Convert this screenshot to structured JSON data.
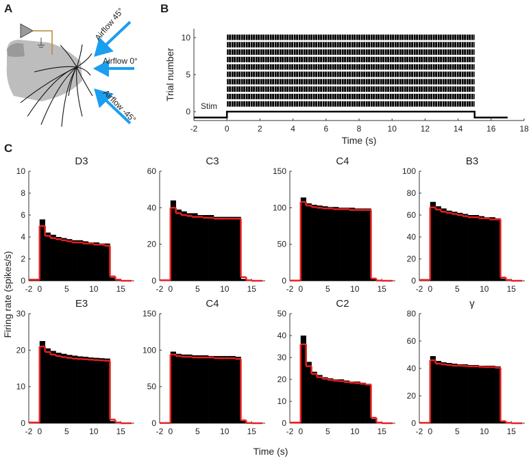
{
  "panel_labels": {
    "a": "A",
    "b": "B",
    "c": "C"
  },
  "diagram": {
    "arrows": [
      "Airflow 45°",
      "Airflow 0°",
      "Airflow -45°"
    ]
  },
  "shared": {
    "y_label": "Firing rate (spikes/s)",
    "x_label": "Time (s)"
  },
  "chart_data": [
    {
      "type": "raster",
      "x_label": "Time (s)",
      "y_label": "Trial number",
      "xlim": [
        -2,
        18
      ],
      "xticks": [
        -2,
        0,
        2,
        4,
        6,
        8,
        10,
        12,
        14,
        16,
        18
      ],
      "ylim": [
        -1.2,
        11.2
      ],
      "yticks": [
        0,
        5,
        10
      ],
      "trials": [
        1,
        2,
        3,
        4,
        5,
        6,
        7,
        8,
        9,
        10
      ],
      "spike_start": 0,
      "spike_end": 15,
      "stim": {
        "label": "Stim",
        "start": -2,
        "onset": 0,
        "offset": 15,
        "end": 17,
        "low": -0.8,
        "high": 0
      }
    },
    {
      "type": "histogram",
      "title": "D3",
      "xlim": [
        -2,
        17.5
      ],
      "xticks": [
        -2,
        0,
        5,
        10,
        15
      ],
      "ylim": [
        0,
        10
      ],
      "yticks": [
        0,
        2,
        4,
        6,
        8,
        10
      ],
      "bins": [
        -2,
        -1,
        0,
        1,
        2,
        3,
        4,
        5,
        6,
        7,
        8,
        9,
        10,
        11,
        12,
        13,
        14,
        15,
        16,
        17
      ],
      "counts": [
        0.1,
        0.1,
        5.6,
        4.4,
        4.2,
        4.0,
        3.9,
        3.8,
        3.7,
        3.7,
        3.6,
        3.5,
        3.5,
        3.4,
        3.4,
        0.3,
        0.1,
        0,
        0
      ],
      "smoothed": [
        0.1,
        0.1,
        5.0,
        4.1,
        3.9,
        3.8,
        3.7,
        3.6,
        3.5,
        3.5,
        3.4,
        3.4,
        3.3,
        3.3,
        3.2,
        0.4,
        0.1,
        0,
        0
      ],
      "color": "#000000",
      "line_color": "#e8201e"
    },
    {
      "type": "histogram",
      "title": "C3",
      "xlim": [
        -2,
        17.5
      ],
      "xticks": [
        -2,
        0,
        5,
        10,
        15
      ],
      "ylim": [
        0,
        60
      ],
      "yticks": [
        0,
        20,
        40,
        60
      ],
      "bins": [
        -2,
        -1,
        0,
        1,
        2,
        3,
        4,
        5,
        6,
        7,
        8,
        9,
        10,
        11,
        12,
        13,
        14,
        15,
        16,
        17
      ],
      "counts": [
        0.5,
        0.5,
        44,
        39,
        38,
        37,
        37,
        36,
        36,
        36,
        35,
        35,
        35,
        35,
        35,
        1,
        0.5,
        0,
        0
      ],
      "smoothed": [
        0.3,
        0.3,
        40,
        37,
        36,
        35.5,
        35,
        35,
        34.5,
        34.5,
        34,
        34,
        34,
        34,
        34,
        2,
        0.3,
        0,
        0
      ],
      "color": "#000000",
      "line_color": "#e8201e"
    },
    {
      "type": "histogram",
      "title": "C4",
      "xlim": [
        -2,
        17.5
      ],
      "xticks": [
        -2,
        0,
        5,
        10,
        15
      ],
      "ylim": [
        0,
        150
      ],
      "yticks": [
        0,
        50,
        100,
        150
      ],
      "bins": [
        -2,
        -1,
        0,
        1,
        2,
        3,
        4,
        5,
        6,
        7,
        8,
        9,
        10,
        11,
        12,
        13,
        14,
        15,
        16,
        17
      ],
      "counts": [
        0.5,
        0.5,
        114,
        106,
        104,
        103,
        102,
        101,
        101,
        100,
        100,
        100,
        99,
        99,
        99,
        2,
        0.5,
        0,
        0
      ],
      "smoothed": [
        0.3,
        0.3,
        108,
        103,
        101,
        100,
        99,
        99,
        98,
        98,
        98,
        97,
        97,
        97,
        97,
        3,
        0.3,
        0,
        0
      ],
      "color": "#000000",
      "line_color": "#e8201e"
    },
    {
      "type": "histogram",
      "title": "B3",
      "xlim": [
        -2,
        17.5
      ],
      "xticks": [
        -2,
        0,
        5,
        10,
        15
      ],
      "ylim": [
        0,
        100
      ],
      "yticks": [
        0,
        20,
        40,
        60,
        80,
        100
      ],
      "bins": [
        -2,
        -1,
        0,
        1,
        2,
        3,
        4,
        5,
        6,
        7,
        8,
        9,
        10,
        11,
        12,
        13,
        14,
        15,
        16,
        17
      ],
      "counts": [
        1,
        1,
        72,
        68,
        66,
        64,
        63,
        62,
        61,
        60,
        60,
        59,
        58,
        58,
        57,
        2,
        1,
        0,
        0
      ],
      "smoothed": [
        0.8,
        0.8,
        67,
        65,
        63,
        62,
        61,
        60,
        59,
        58,
        58,
        57,
        57,
        56,
        56,
        3,
        0.8,
        0,
        0
      ],
      "color": "#000000",
      "line_color": "#e8201e"
    },
    {
      "type": "histogram",
      "title": "E3",
      "xlim": [
        -2,
        17.5
      ],
      "xticks": [
        -2,
        0,
        5,
        10,
        15
      ],
      "ylim": [
        0,
        30
      ],
      "yticks": [
        0,
        10,
        20,
        30
      ],
      "bins": [
        -2,
        -1,
        0,
        1,
        2,
        3,
        4,
        5,
        6,
        7,
        8,
        9,
        10,
        11,
        12,
        13,
        14,
        15,
        16,
        17
      ],
      "counts": [
        0.3,
        0.3,
        22.5,
        20.5,
        19.8,
        19.3,
        19,
        18.7,
        18.5,
        18.3,
        18.2,
        18,
        17.9,
        17.8,
        17.7,
        0.6,
        0.3,
        0,
        0
      ],
      "smoothed": [
        0.2,
        0.2,
        21,
        19.5,
        18.8,
        18.4,
        18.1,
        17.9,
        17.7,
        17.6,
        17.5,
        17.4,
        17.3,
        17.2,
        17.1,
        1,
        0.2,
        0,
        0
      ],
      "color": "#000000",
      "line_color": "#e8201e"
    },
    {
      "type": "histogram",
      "title": "C4",
      "xlim": [
        -2,
        17.5
      ],
      "xticks": [
        -2,
        0,
        5,
        10,
        15
      ],
      "ylim": [
        0,
        150
      ],
      "yticks": [
        0,
        50,
        100,
        150
      ],
      "bins": [
        -2,
        -1,
        0,
        1,
        2,
        3,
        4,
        5,
        6,
        7,
        8,
        9,
        10,
        11,
        12,
        13,
        14,
        15,
        16,
        17
      ],
      "counts": [
        0.5,
        0.5,
        98,
        95,
        94,
        94,
        93,
        93,
        93,
        92,
        92,
        92,
        92,
        92,
        91,
        3,
        0.5,
        0,
        0
      ],
      "smoothed": [
        0.3,
        0.3,
        94,
        92,
        91,
        91,
        90,
        90,
        90,
        90,
        89,
        89,
        89,
        89,
        88,
        4,
        0.3,
        0,
        0
      ],
      "color": "#000000",
      "line_color": "#e8201e"
    },
    {
      "type": "histogram",
      "title": "C2",
      "xlim": [
        -2,
        17.5
      ],
      "xticks": [
        -2,
        0,
        5,
        10,
        15
      ],
      "ylim": [
        0,
        50
      ],
      "yticks": [
        0,
        10,
        20,
        30,
        40,
        50
      ],
      "bins": [
        -2,
        -1,
        0,
        1,
        2,
        3,
        4,
        5,
        6,
        7,
        8,
        9,
        10,
        11,
        12,
        13,
        14,
        15,
        16,
        17
      ],
      "counts": [
        0.5,
        0.5,
        40,
        28,
        23.5,
        22,
        21,
        20.5,
        20,
        20,
        19.5,
        19,
        19,
        18.5,
        18,
        2,
        0.5,
        0,
        0
      ],
      "smoothed": [
        0.3,
        0.3,
        36,
        26,
        22.5,
        21,
        20.3,
        19.8,
        19.4,
        19.2,
        18.8,
        18.5,
        18.3,
        18,
        17.6,
        2.5,
        0.3,
        0,
        0
      ],
      "color": "#000000",
      "line_color": "#e8201e"
    },
    {
      "type": "histogram",
      "title": "γ",
      "xlim": [
        -2,
        17.5
      ],
      "xticks": [
        -2,
        0,
        5,
        10,
        15
      ],
      "ylim": [
        0,
        80
      ],
      "yticks": [
        0,
        20,
        40,
        60,
        80
      ],
      "bins": [
        -2,
        -1,
        0,
        1,
        2,
        3,
        4,
        5,
        6,
        7,
        8,
        9,
        10,
        11,
        12,
        13,
        14,
        15,
        16,
        17
      ],
      "counts": [
        0.5,
        0.5,
        49,
        45.5,
        44.5,
        44,
        43.5,
        43,
        43,
        42.5,
        42.5,
        42,
        42,
        42,
        41.5,
        1,
        0.5,
        0,
        0
      ],
      "smoothed": [
        0.3,
        0.3,
        46,
        43.5,
        43,
        42.5,
        42,
        42,
        41.8,
        41.5,
        41.5,
        41.2,
        41,
        41,
        40.5,
        1.5,
        0.3,
        0,
        0
      ],
      "color": "#000000",
      "line_color": "#e8201e"
    }
  ]
}
